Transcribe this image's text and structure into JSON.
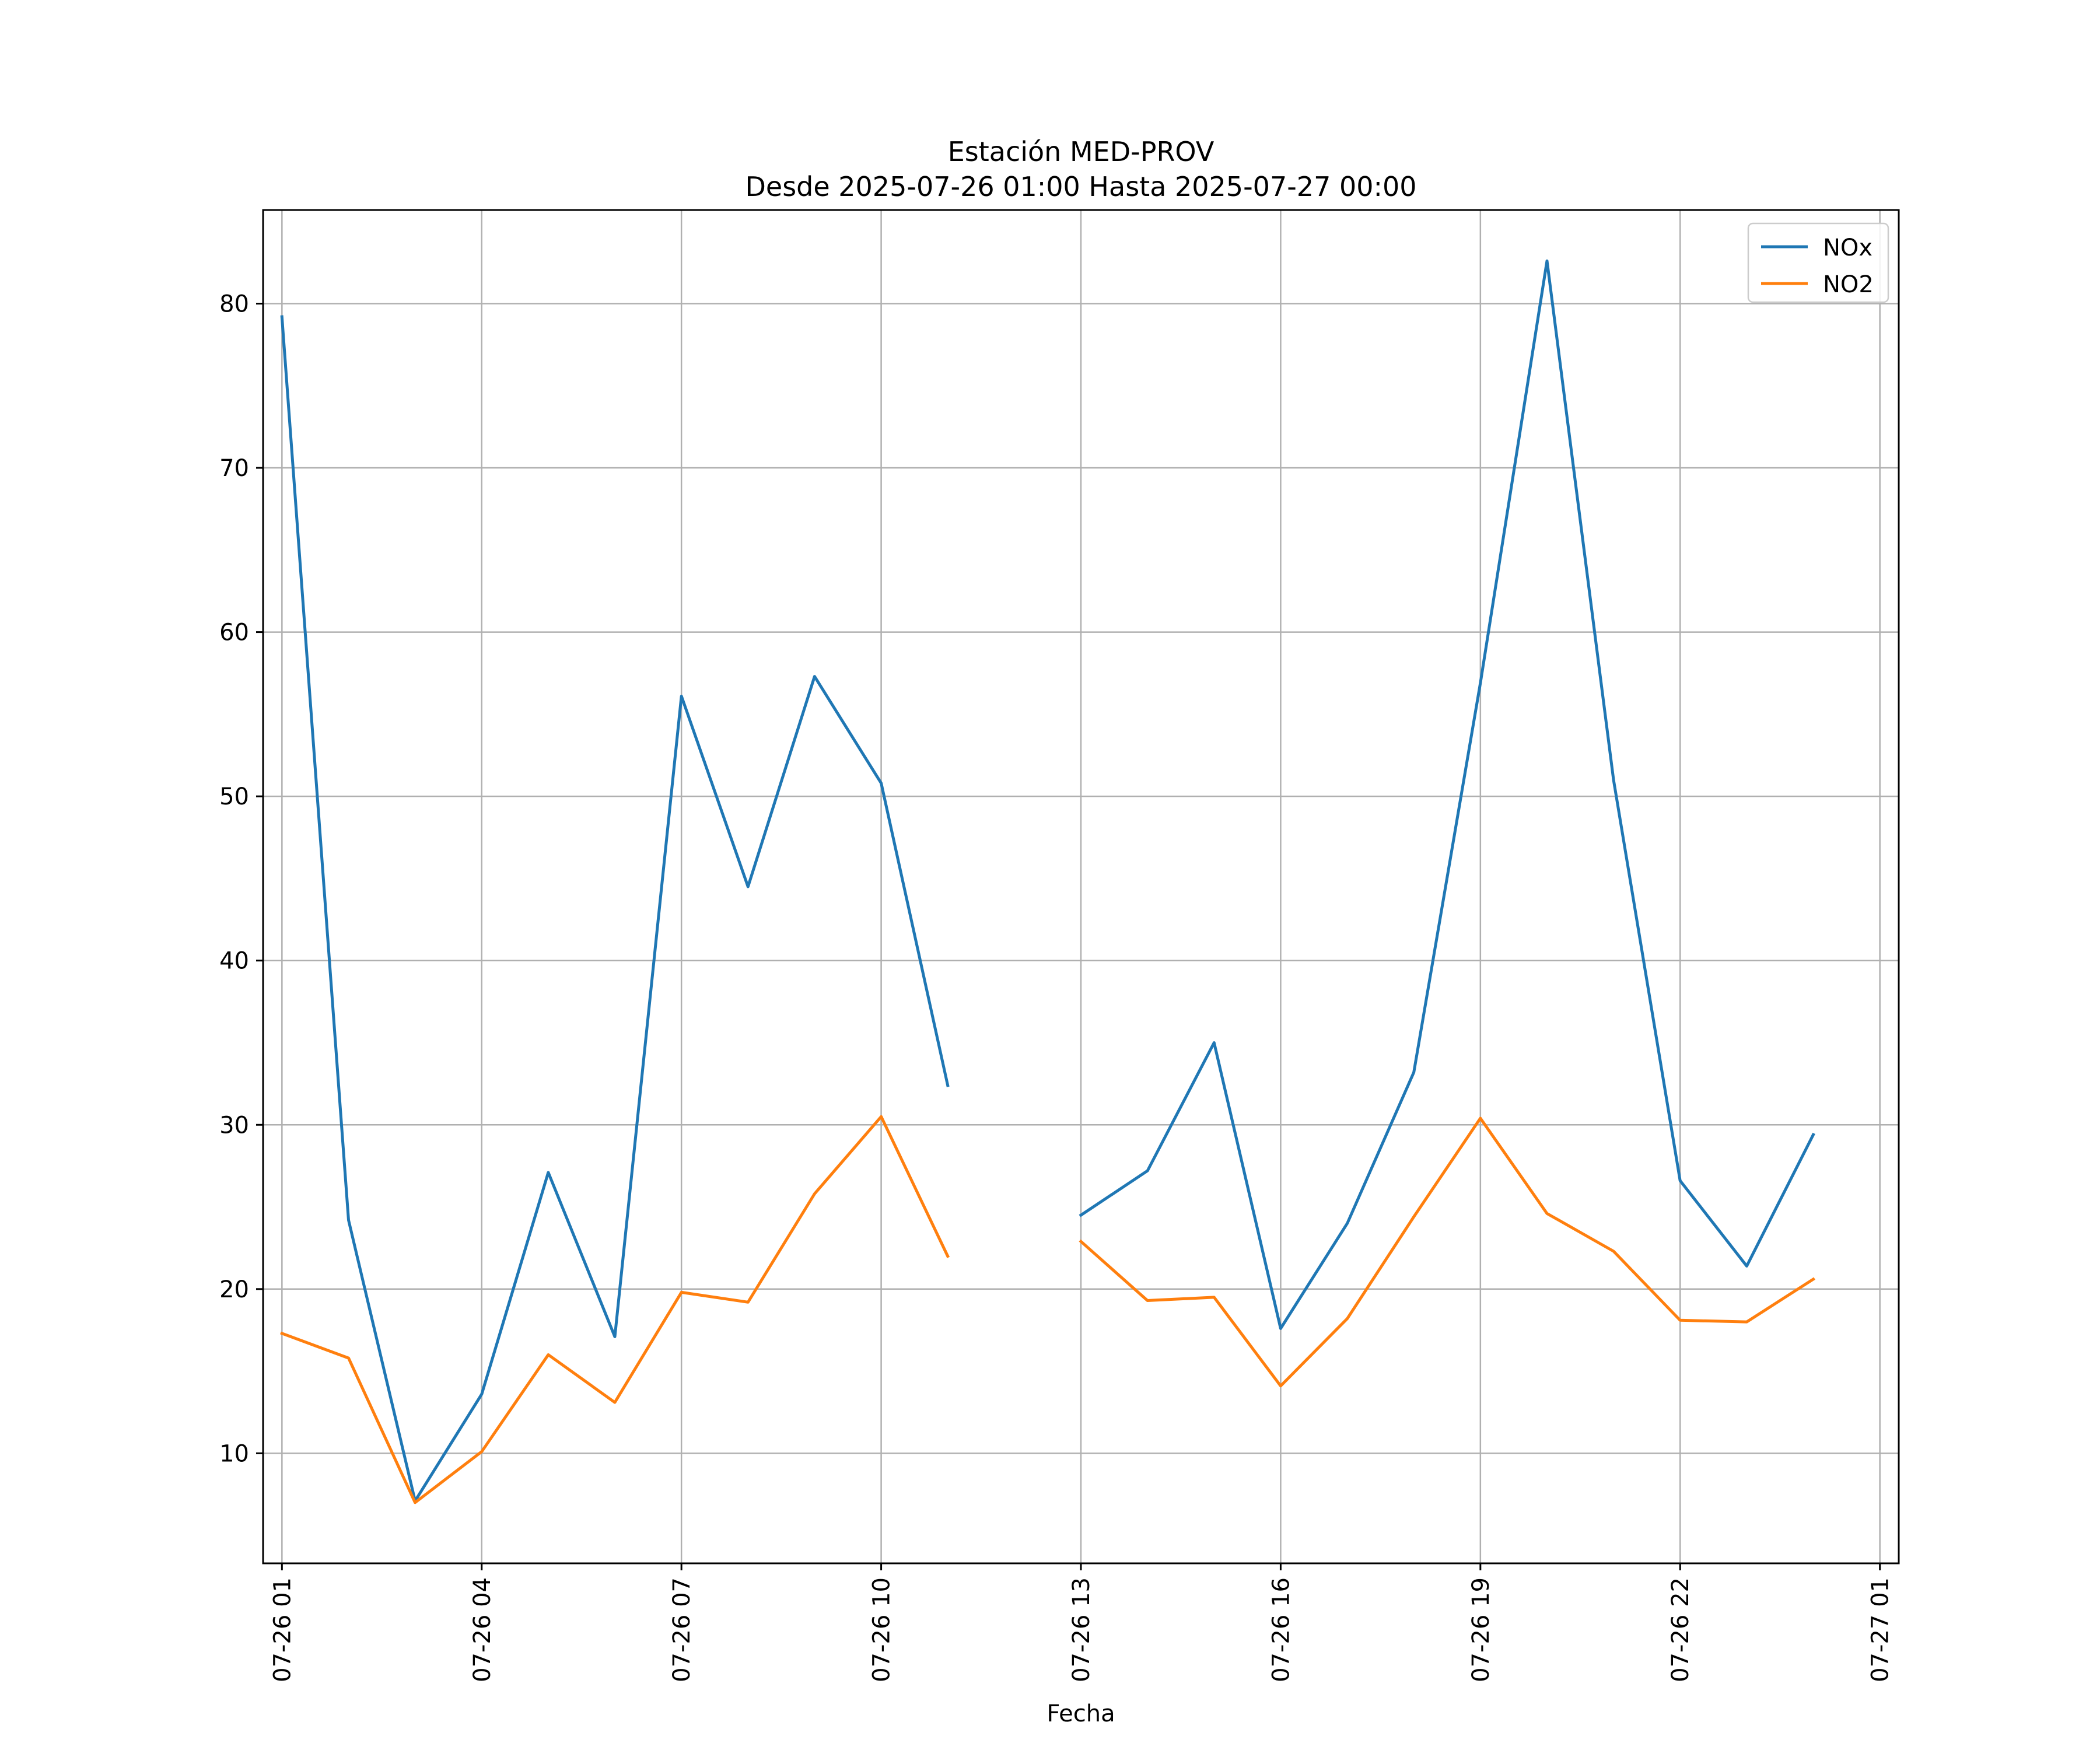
{
  "chart_data": {
    "type": "line",
    "title": [
      "Estación MED-PROV",
      "Desde 2025-07-26 01:00 Hasta 2025-07-27 00:00"
    ],
    "xlabel": "Fecha",
    "ylabel": "",
    "x_axis_type": "datetime",
    "xlim": [
      "2025-07-26 00:43",
      "2025-07-27 01:17"
    ],
    "ylim": [
      3.3,
      85.7
    ],
    "x_ticks": [
      {
        "value": "2025-07-26 01:00",
        "label": "07-26 01"
      },
      {
        "value": "2025-07-26 04:00",
        "label": "07-26 04"
      },
      {
        "value": "2025-07-26 07:00",
        "label": "07-26 07"
      },
      {
        "value": "2025-07-26 10:00",
        "label": "07-26 10"
      },
      {
        "value": "2025-07-26 13:00",
        "label": "07-26 13"
      },
      {
        "value": "2025-07-26 16:00",
        "label": "07-26 16"
      },
      {
        "value": "2025-07-26 19:00",
        "label": "07-26 19"
      },
      {
        "value": "2025-07-26 22:00",
        "label": "07-26 22"
      },
      {
        "value": "2025-07-27 01:00",
        "label": "07-27 01"
      }
    ],
    "y_ticks": [
      10,
      20,
      30,
      40,
      50,
      60,
      70,
      80
    ],
    "grid": true,
    "legend_position": "top-right",
    "x": [
      "2025-07-26 01:00",
      "2025-07-26 02:00",
      "2025-07-26 03:00",
      "2025-07-26 04:00",
      "2025-07-26 05:00",
      "2025-07-26 06:00",
      "2025-07-26 07:00",
      "2025-07-26 08:00",
      "2025-07-26 09:00",
      "2025-07-26 10:00",
      "2025-07-26 11:00",
      "2025-07-26 12:00",
      "2025-07-26 13:00",
      "2025-07-26 14:00",
      "2025-07-26 15:00",
      "2025-07-26 16:00",
      "2025-07-26 17:00",
      "2025-07-26 18:00",
      "2025-07-26 19:00",
      "2025-07-26 20:00",
      "2025-07-26 21:00",
      "2025-07-26 22:00",
      "2025-07-26 23:00",
      "2025-07-27 00:00"
    ],
    "series": [
      {
        "name": "NOx",
        "color": "#1f77b4",
        "values": [
          79.2,
          24.2,
          7.1,
          13.6,
          27.1,
          17.1,
          56.1,
          44.5,
          57.3,
          50.8,
          32.4,
          null,
          24.5,
          27.2,
          35.0,
          17.6,
          24.0,
          33.2,
          56.9,
          82.6,
          51.0,
          26.6,
          21.4,
          29.4
        ]
      },
      {
        "name": "NO2",
        "color": "#ff7f0e",
        "values": [
          17.3,
          15.8,
          7.0,
          10.1,
          16.0,
          13.1,
          19.8,
          19.2,
          25.8,
          30.5,
          22.0,
          null,
          22.9,
          19.3,
          19.5,
          14.1,
          18.2,
          24.4,
          30.4,
          24.6,
          22.3,
          18.1,
          18.0,
          20.6
        ]
      }
    ]
  }
}
